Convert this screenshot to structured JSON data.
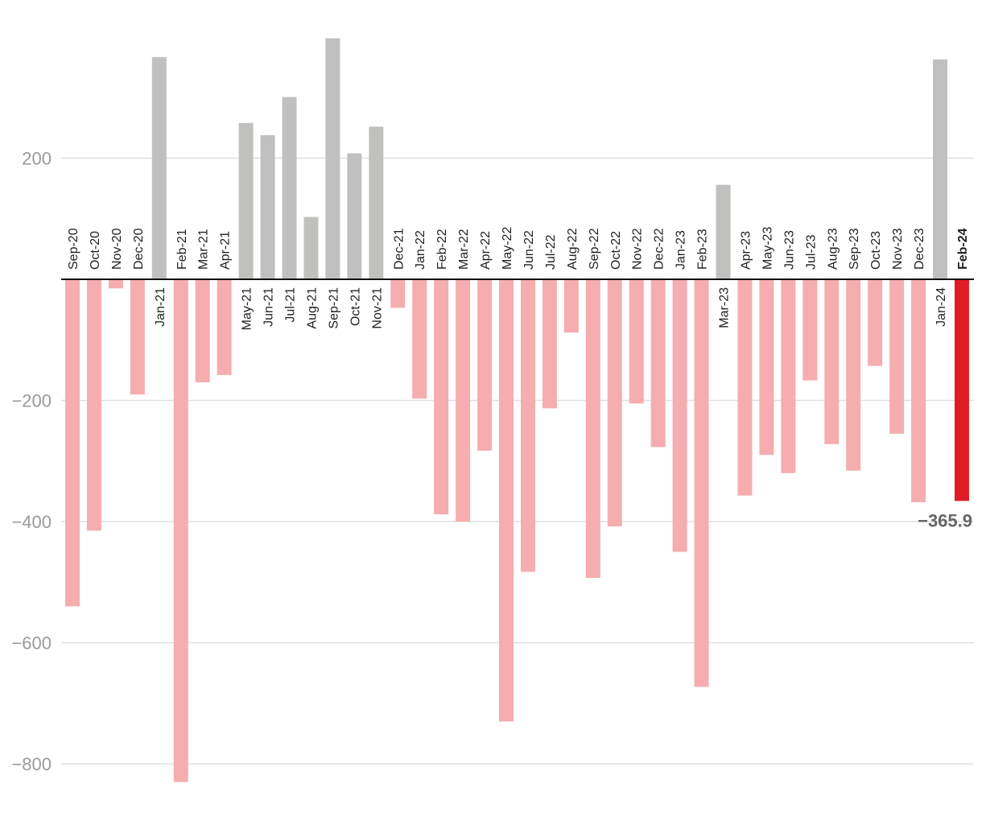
{
  "chart_data": {
    "type": "bar",
    "categories": [
      "Sep-20",
      "Oct-20",
      "Nov-20",
      "Dec-20",
      "Jan-21",
      "Feb-21",
      "Mar-21",
      "Apr-21",
      "May-21",
      "Jun-21",
      "Jul-21",
      "Aug-21",
      "Sep-21",
      "Oct-21",
      "Nov-21",
      "Dec-21",
      "Jan-22",
      "Feb-22",
      "Mar-22",
      "Apr-22",
      "May-22",
      "Jun-22",
      "Jul-22",
      "Aug-22",
      "Sep-22",
      "Oct-22",
      "Nov-22",
      "Dec-22",
      "Jan-23",
      "Feb-23",
      "Mar-23",
      "Apr-23",
      "May-23",
      "Jun-23",
      "Jul-23",
      "Aug-23",
      "Sep-23",
      "Oct-23",
      "Nov-23",
      "Dec-23",
      "Jan-24",
      "Feb-24"
    ],
    "values": [
      -540,
      -415,
      -15,
      -190,
      367,
      -830,
      -170,
      -158,
      258,
      238,
      301,
      103,
      398,
      208,
      252,
      -47,
      -197,
      -388,
      -400,
      -283,
      -730,
      -483,
      -213,
      -88,
      -493,
      -408,
      -205,
      -277,
      -450,
      -673,
      156,
      -357,
      -290,
      -320,
      -167,
      -272,
      -316,
      -143,
      -255,
      -368,
      363,
      -365.9
    ],
    "ylim": [
      -830,
      400
    ],
    "yticks": [
      200,
      -200,
      -400,
      -600,
      -800
    ],
    "ytick_labels": [
      "200",
      "−200",
      "−400",
      "−600",
      "−800"
    ],
    "highlight_index": 41,
    "highlight_label": "−365.9",
    "grid": true,
    "title": "",
    "xlabel": "",
    "ylabel": ""
  },
  "colors": {
    "positive": "#c0c0bf",
    "negative": "#f5adaf",
    "highlight": "#e11b22",
    "grid": "#e0e0e0",
    "axis": "#111111"
  }
}
